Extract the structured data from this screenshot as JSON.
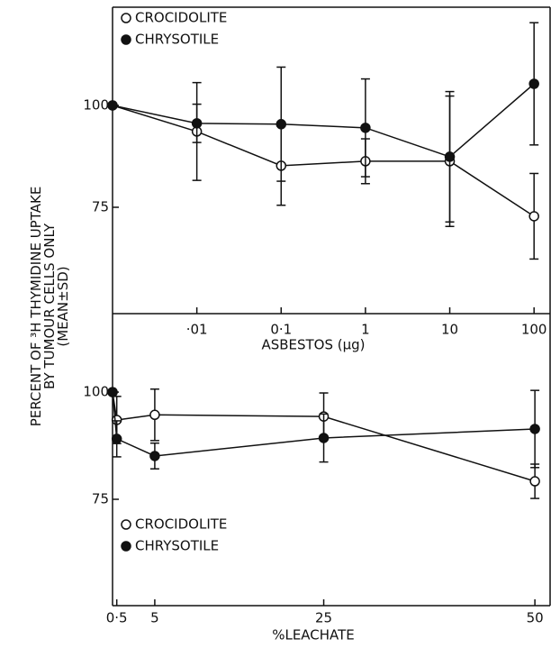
{
  "chart_data": [
    {
      "type": "line",
      "xscale": "log",
      "ylabel": [
        "PERCENT OF ³H THYMIDINE UPTAKE",
        "BY TUMOUR CELLS ONLY",
        "(MEAN±SD)"
      ],
      "xlabel": "ASBESTOS (μg)",
      "x": [
        0.001,
        0.01,
        0.1,
        1,
        10,
        100
      ],
      "series": [
        {
          "name": "CROCIDOLITE",
          "color": "#111111",
          "marker": "open",
          "values": [
            100,
            93.6,
            85.2,
            86.3,
            86.3,
            72.8
          ],
          "errors": [
            null,
            12,
            9.7,
            5.5,
            16,
            10.5
          ]
        },
        {
          "name": "CHRYSOTILE",
          "color": "#111111",
          "marker": "filled",
          "values": [
            100,
            95.6,
            95.4,
            94.5,
            87.4,
            105.3
          ],
          "errors": [
            null,
            4.7,
            14,
            12,
            16,
            15
          ]
        }
      ],
      "xlim": [
        0.001,
        155
      ],
      "ylim": [
        48.9,
        124.1
      ],
      "xticks": [
        {
          "value": 0.01,
          "label": "·01"
        },
        {
          "value": 0.1,
          "label": "0·1"
        },
        1,
        10,
        100
      ],
      "yticks": [
        75,
        100
      ],
      "legend": "upper left"
    },
    {
      "type": "line",
      "xscale": "linear",
      "xlabel": "%LEACHATE",
      "x": [
        0,
        0.5,
        5,
        25,
        50
      ],
      "series": [
        {
          "name": "CROCIDOLITE",
          "color": "#111111",
          "marker": "open",
          "values": [
            100,
            93.5,
            94.7,
            94.3,
            79.2
          ],
          "errors": [
            null,
            5.5,
            6,
            5.5,
            4
          ]
        },
        {
          "name": "CHRYSOTILE",
          "color": "#111111",
          "marker": "filled",
          "values": [
            100,
            89.1,
            85.1,
            89.3,
            91.4
          ],
          "errors": [
            null,
            4.2,
            3,
            5.6,
            9
          ]
        }
      ],
      "xlim": [
        0,
        51.8
      ],
      "ylim": [
        50.2,
        118.3
      ],
      "xticks": [
        {
          "value": 0.5,
          "label": "0·5"
        },
        5,
        25,
        50
      ],
      "yticks": [
        75,
        100
      ],
      "legend": "lower left"
    }
  ]
}
